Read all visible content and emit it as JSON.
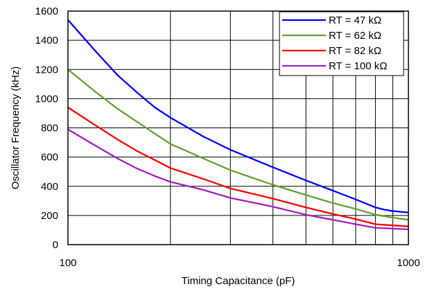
{
  "chart_data": {
    "type": "line",
    "title": "",
    "xlabel": "Timing Capacitance (pF)",
    "ylabel": "Oscillator Frequency (kHz)",
    "xscale": "log",
    "xlim": [
      100,
      1000
    ],
    "ylim": [
      0,
      1600
    ],
    "x_tick_labels": [
      "100",
      "1000"
    ],
    "y_ticks": [
      0,
      200,
      400,
      600,
      800,
      1000,
      1200,
      1400,
      1600
    ],
    "y_tick_labels": [
      "0",
      "200",
      "400",
      "600",
      "800",
      "1000",
      "1200",
      "1400",
      "1600"
    ],
    "grid": true,
    "legend_position": "top-right",
    "series": [
      {
        "name": "RT = 47 kΩ",
        "color": "#0000ff",
        "points": [
          [
            100,
            1540
          ],
          [
            110,
            1430
          ],
          [
            120,
            1330
          ],
          [
            140,
            1160
          ],
          [
            160,
            1040
          ],
          [
            180,
            940
          ],
          [
            200,
            870
          ],
          [
            250,
            740
          ],
          [
            300,
            650
          ],
          [
            400,
            530
          ],
          [
            500,
            440
          ],
          [
            600,
            370
          ],
          [
            700,
            310
          ],
          [
            800,
            255
          ],
          [
            850,
            240
          ],
          [
            900,
            230
          ],
          [
            1000,
            220
          ]
        ]
      },
      {
        "name": "RT = 62 kΩ",
        "color": "#66a032",
        "points": [
          [
            100,
            1200
          ],
          [
            120,
            1050
          ],
          [
            140,
            930
          ],
          [
            160,
            840
          ],
          [
            180,
            760
          ],
          [
            200,
            690
          ],
          [
            250,
            590
          ],
          [
            300,
            510
          ],
          [
            400,
            410
          ],
          [
            500,
            340
          ],
          [
            600,
            285
          ],
          [
            700,
            245
          ],
          [
            800,
            205
          ],
          [
            850,
            195
          ],
          [
            900,
            185
          ],
          [
            1000,
            170
          ]
        ]
      },
      {
        "name": "RT = 82 kΩ",
        "color": "#ff0000",
        "points": [
          [
            100,
            940
          ],
          [
            120,
            820
          ],
          [
            140,
            720
          ],
          [
            160,
            640
          ],
          [
            180,
            580
          ],
          [
            200,
            525
          ],
          [
            250,
            450
          ],
          [
            300,
            385
          ],
          [
            400,
            315
          ],
          [
            500,
            255
          ],
          [
            600,
            210
          ],
          [
            700,
            175
          ],
          [
            800,
            140
          ],
          [
            900,
            132
          ],
          [
            1000,
            125
          ]
        ]
      },
      {
        "name": "RT = 100 kΩ",
        "color": "#a020c0",
        "points": [
          [
            100,
            790
          ],
          [
            120,
            680
          ],
          [
            140,
            590
          ],
          [
            160,
            520
          ],
          [
            180,
            470
          ],
          [
            200,
            430
          ],
          [
            250,
            375
          ],
          [
            300,
            320
          ],
          [
            400,
            260
          ],
          [
            500,
            205
          ],
          [
            600,
            170
          ],
          [
            700,
            140
          ],
          [
            800,
            115
          ],
          [
            900,
            110
          ],
          [
            1000,
            105
          ]
        ]
      }
    ]
  }
}
